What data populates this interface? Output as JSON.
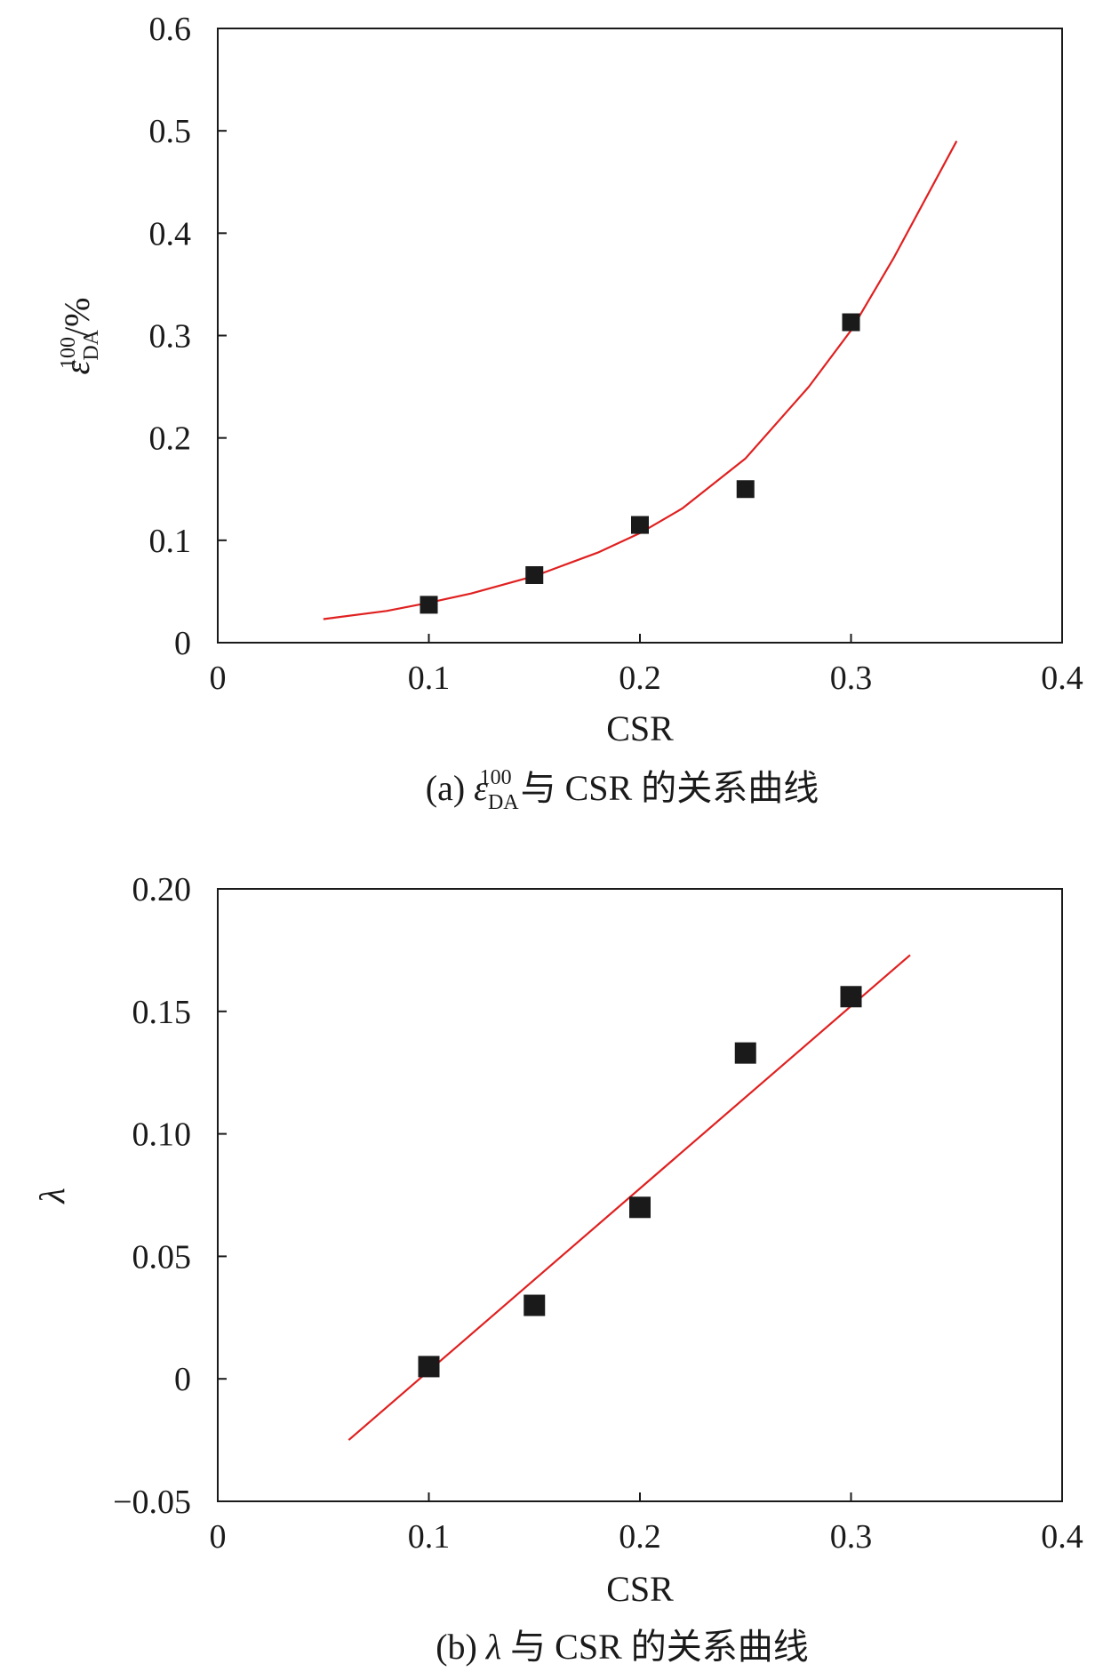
{
  "chart_data": [
    {
      "type": "scatter",
      "panel": "a",
      "caption": {
        "prefix": "(a) ",
        "symbol": "ε",
        "symbol_sup": "100",
        "symbol_sub": "DA",
        "rest": " 与 CSR 的关系曲线"
      },
      "xlabel": "CSR",
      "ylabel": {
        "symbol": "ε",
        "sup": "100",
        "sub": "DA",
        "unit": "/%"
      },
      "xlim": [
        0,
        0.4
      ],
      "ylim": [
        0,
        0.6
      ],
      "xticks": [
        0,
        0.1,
        0.2,
        0.3,
        0.4
      ],
      "xtick_labels": [
        "0",
        "0.1",
        "0.2",
        "0.3",
        "0.4"
      ],
      "yticks": [
        0,
        0.1,
        0.2,
        0.3,
        0.4,
        0.5,
        0.6
      ],
      "ytick_labels": [
        "0",
        "0.1",
        "0.2",
        "0.3",
        "0.4",
        "0.5",
        "0.6"
      ],
      "grid": false,
      "series": [
        {
          "marker": "square",
          "color": "#1a1a1a",
          "x": [
            0.1,
            0.15,
            0.2,
            0.25,
            0.3
          ],
          "y": [
            0.037,
            0.066,
            0.115,
            0.15,
            0.313
          ]
        }
      ],
      "fit": {
        "kind": "exponential",
        "color": "#e02020",
        "x": [
          0.05,
          0.08,
          0.1,
          0.12,
          0.15,
          0.18,
          0.2,
          0.22,
          0.25,
          0.28,
          0.3,
          0.32,
          0.35
        ],
        "y": [
          0.023,
          0.031,
          0.039,
          0.048,
          0.065,
          0.088,
          0.107,
          0.131,
          0.18,
          0.25,
          0.305,
          0.375,
          0.49
        ]
      }
    },
    {
      "type": "scatter",
      "panel": "b",
      "caption": {
        "prefix": "(b) ",
        "symbol": "λ",
        "rest": " 与 CSR 的关系曲线"
      },
      "xlabel": "CSR",
      "ylabel": {
        "symbol": "λ"
      },
      "xlim": [
        0,
        0.4
      ],
      "ylim": [
        -0.05,
        0.2
      ],
      "xticks": [
        0,
        0.1,
        0.2,
        0.3,
        0.4
      ],
      "xtick_labels": [
        "0",
        "0.1",
        "0.2",
        "0.3",
        "0.4"
      ],
      "yticks": [
        -0.05,
        0,
        0.05,
        0.1,
        0.15,
        0.2
      ],
      "ytick_labels": [
        "−0.05",
        "0",
        "0.05",
        "0.10",
        "0.15",
        "0.20"
      ],
      "grid": false,
      "series": [
        {
          "marker": "square",
          "color": "#1a1a1a",
          "x": [
            0.1,
            0.15,
            0.2,
            0.25,
            0.3
          ],
          "y": [
            0.005,
            0.03,
            0.07,
            0.133,
            0.156
          ]
        }
      ],
      "fit": {
        "kind": "linear",
        "color": "#e02020",
        "x": [
          0.062,
          0.328
        ],
        "y": [
          -0.025,
          0.173
        ]
      }
    }
  ]
}
